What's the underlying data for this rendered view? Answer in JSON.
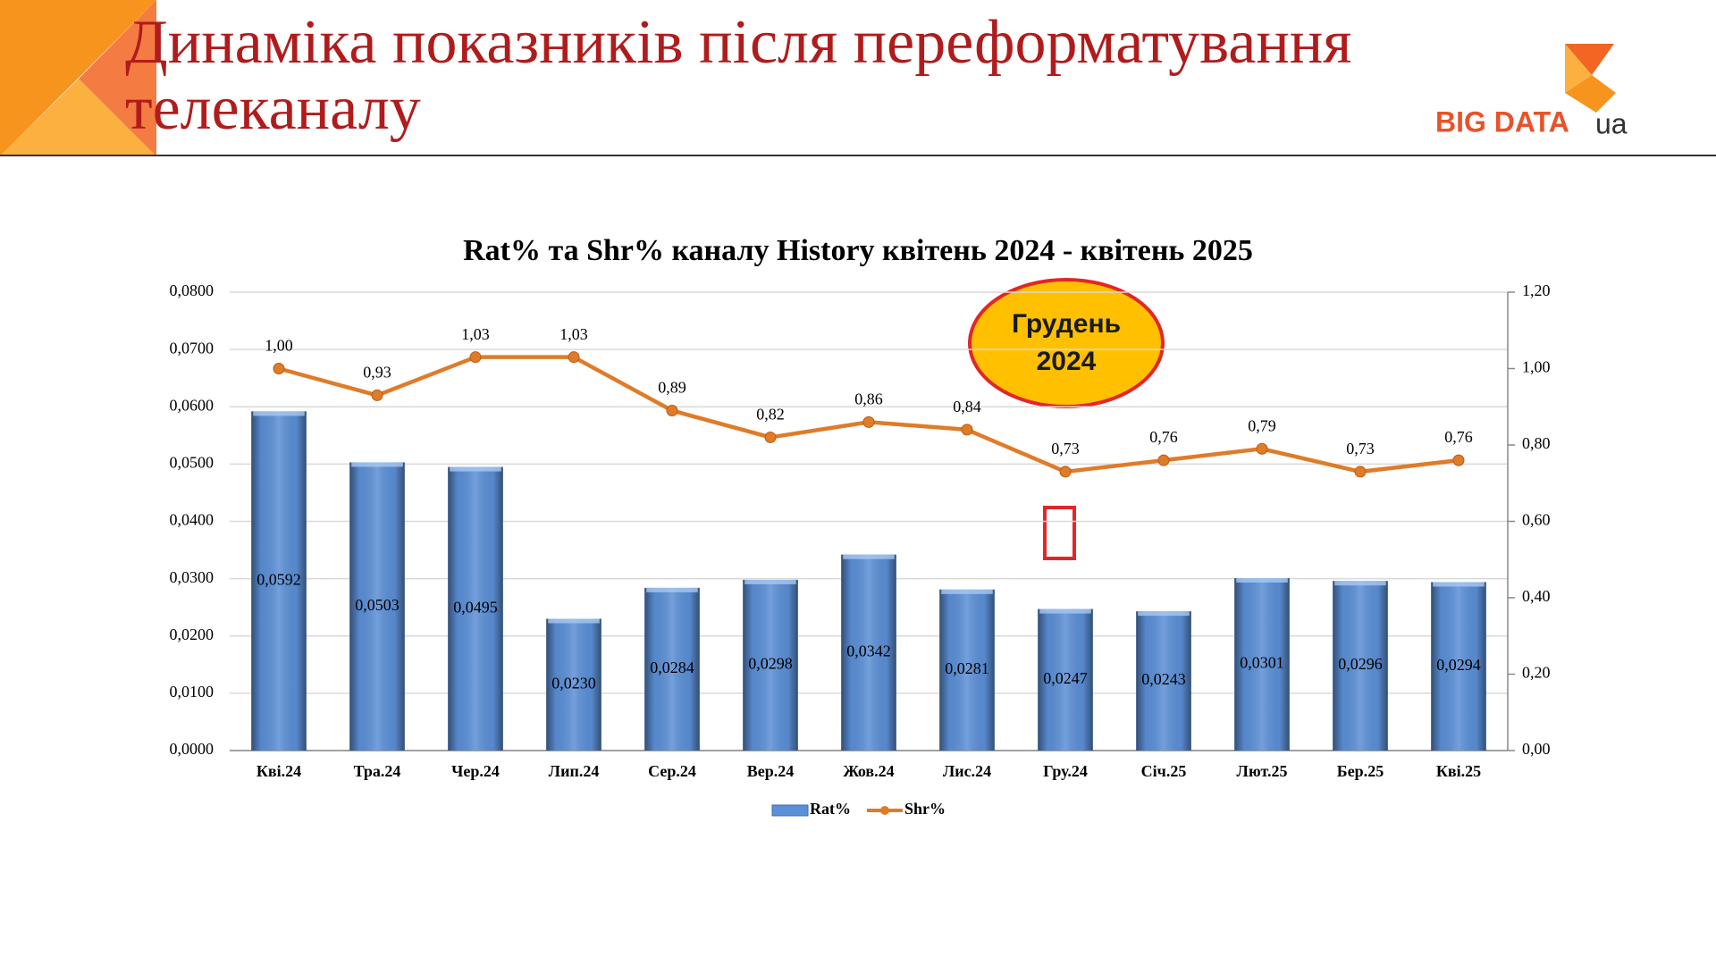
{
  "slide": {
    "title": [
      "Динаміка  показників після переформатування",
      "телеканалу"
    ],
    "logo": "BIG DATA",
    "logo_suffix": "ua"
  },
  "chart_data": {
    "type": "bar-line",
    "title": "Rat% та Shr% каналу History квітень 2024 - квітень 2025",
    "annotation": [
      "Грудень",
      "2024"
    ],
    "categories": [
      "Кві.24",
      "Тра.24",
      "Чер.24",
      "Лип.24",
      "Сер.24",
      "Вер.24",
      "Жов.24",
      "Лис.24",
      "Гру.24",
      "Січ.25",
      "Лют.25",
      "Бер.25",
      "Кві.25"
    ],
    "series": [
      {
        "name": "Rat%",
        "type": "bar",
        "color": "#5b8fd6",
        "values": [
          0.0592,
          0.0503,
          0.0495,
          0.023,
          0.0284,
          0.0298,
          0.0342,
          0.0281,
          0.0247,
          0.0243,
          0.0301,
          0.0296,
          0.0294
        ],
        "value_labels": [
          "0,0592",
          "0,0503",
          "0,0495",
          "0,0230",
          "0,0284",
          "0,0298",
          "0,0342",
          "0,0281",
          "0,0247",
          "0,0243",
          "0,0301",
          "0,0296",
          "0,0294"
        ]
      },
      {
        "name": "Shr%",
        "type": "line",
        "axis": "y2",
        "color": "#e07b28",
        "values": [
          1.0,
          0.93,
          1.03,
          1.03,
          0.89,
          0.82,
          0.86,
          0.84,
          0.73,
          0.76,
          0.79,
          0.73,
          0.76
        ],
        "value_labels": [
          "1,00",
          "0,93",
          "1,03",
          "1,03",
          "0,89",
          "0,82",
          "0,86",
          "0,84",
          "0,73",
          "0,76",
          "0,79",
          "0,73",
          "0,76"
        ]
      }
    ],
    "ylim": [
      0,
      0.08
    ],
    "yticks": [
      {
        "value": 0,
        "label": "0,0000"
      },
      {
        "value": 0.01,
        "label": "0,0100"
      },
      {
        "value": 0.02,
        "label": "0,0200"
      },
      {
        "value": 0.03,
        "label": "0,0300"
      },
      {
        "value": 0.04,
        "label": "0,0400"
      },
      {
        "value": 0.05,
        "label": "0,0500"
      },
      {
        "value": 0.06,
        "label": "0,0600"
      },
      {
        "value": 0.07,
        "label": "0,0700"
      },
      {
        "value": 0.08,
        "label": "0,0800"
      }
    ],
    "y2lim": [
      0,
      1.2
    ],
    "y2ticks": [
      {
        "value": 0,
        "label": "0,00"
      },
      {
        "value": 0.2,
        "label": "0,20"
      },
      {
        "value": 0.4,
        "label": "0,40"
      },
      {
        "value": 0.6,
        "label": "0,60"
      },
      {
        "value": 0.8,
        "label": "0,80"
      },
      {
        "value": 1.0,
        "label": "1,00"
      },
      {
        "value": 1.2,
        "label": "1,20"
      }
    ],
    "grid": true,
    "legend": "bottom"
  }
}
